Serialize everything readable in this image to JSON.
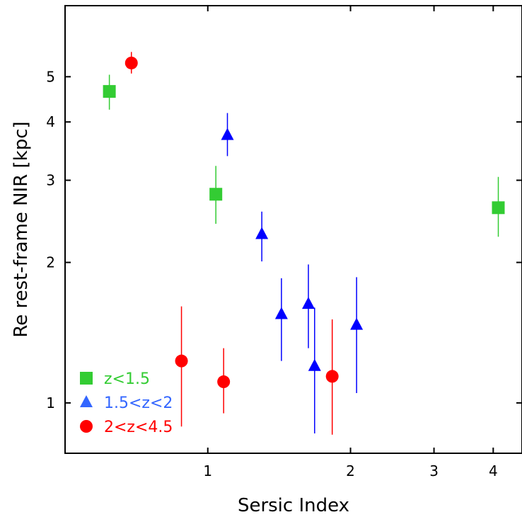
{
  "chart_data": {
    "type": "scatter",
    "xlabel": "Sersic Index",
    "ylabel": "Re rest-frame NIR [kpc]",
    "x_scale": "log",
    "y_scale": "log",
    "xlim": [
      0.5,
      4.6
    ],
    "ylim": [
      0.78,
      7.1
    ],
    "x_ticks": [
      {
        "value": 1,
        "label": "1"
      },
      {
        "value": 2,
        "label": "2"
      },
      {
        "value": 3,
        "label": "3"
      },
      {
        "value": 4,
        "label": "4"
      }
    ],
    "y_ticks": [
      {
        "value": 1,
        "label": "1"
      },
      {
        "value": 2,
        "label": "2"
      },
      {
        "value": 3,
        "label": "3"
      },
      {
        "value": 4,
        "label": "4"
      },
      {
        "value": 5,
        "label": "5"
      }
    ],
    "grid": false,
    "legend_position": "bottom-left",
    "series": [
      {
        "name": "z<1.5",
        "marker": "square",
        "color": "#33cc33",
        "points": [
          {
            "x": 0.62,
            "y": 4.65,
            "y_lo": 4.25,
            "y_hi": 5.05
          },
          {
            "x": 1.04,
            "y": 2.8,
            "y_lo": 2.42,
            "y_hi": 3.22
          },
          {
            "x": 4.1,
            "y": 2.62,
            "y_lo": 2.27,
            "y_hi": 3.05
          }
        ]
      },
      {
        "name": "1.5<z<2",
        "marker": "triangle",
        "color": "#0000ff",
        "legend_color": "#3366ff",
        "points": [
          {
            "x": 1.1,
            "y": 3.75,
            "y_lo": 3.38,
            "y_hi": 4.18
          },
          {
            "x": 1.3,
            "y": 2.3,
            "y_lo": 2.01,
            "y_hi": 2.57
          },
          {
            "x": 1.43,
            "y": 1.55,
            "y_lo": 1.23,
            "y_hi": 1.85
          },
          {
            "x": 1.63,
            "y": 1.63,
            "y_lo": 1.31,
            "y_hi": 1.98
          },
          {
            "x": 1.68,
            "y": 1.2,
            "y_lo": 0.86,
            "y_hi": 1.6
          },
          {
            "x": 2.06,
            "y": 1.47,
            "y_lo": 1.05,
            "y_hi": 1.86
          }
        ]
      },
      {
        "name": "2<z<4.5",
        "marker": "circle",
        "color": "#ff0000",
        "points": [
          {
            "x": 0.69,
            "y": 5.35,
            "y_lo": 5.08,
            "y_hi": 5.65
          },
          {
            "x": 0.88,
            "y": 1.23,
            "y_lo": 0.89,
            "y_hi": 1.61
          },
          {
            "x": 1.08,
            "y": 1.11,
            "y_lo": 0.95,
            "y_hi": 1.31
          },
          {
            "x": 1.83,
            "y": 1.14,
            "y_lo": 0.855,
            "y_hi": 1.51
          }
        ]
      }
    ]
  }
}
